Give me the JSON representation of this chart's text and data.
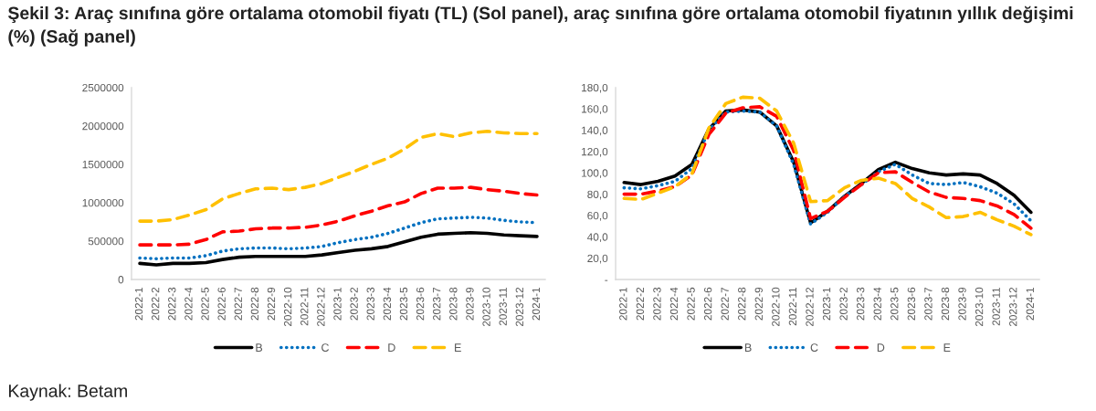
{
  "chart_data": [
    {
      "type": "line",
      "title": "Şekil 3: Araç sınıfına göre ortalama otomobil fiyatı (TL) (Sol panel), araç sınıfına göre ortalama otomobil fiyatının yıllık değişimi (%) (Sağ panel)",
      "annotations": [
        "Kaynak: Betam"
      ],
      "categories": [
        "2022-1",
        "2022-2",
        "2022-3",
        "2022-4",
        "2022-5",
        "2022-6",
        "2022-7",
        "2022-8",
        "2022-9",
        "2022-10",
        "2022-11",
        "2022-12",
        "2023-1",
        "2023-2",
        "2023-3",
        "2023-4",
        "2023-5",
        "2023-6",
        "2023-7",
        "2023-8",
        "2023-9",
        "2023-10",
        "2023-11",
        "2023-12",
        "2024-1"
      ],
      "series": [
        {
          "name": "B",
          "color": "#000000",
          "line_style": "solid",
          "values": [
            210000,
            190000,
            210000,
            210000,
            220000,
            260000,
            290000,
            300000,
            300000,
            300000,
            300000,
            320000,
            350000,
            380000,
            400000,
            430000,
            490000,
            550000,
            590000,
            600000,
            610000,
            600000,
            580000,
            570000,
            560000
          ]
        },
        {
          "name": "C",
          "color": "#0070c0",
          "line_style": "dotted",
          "values": [
            280000,
            270000,
            280000,
            280000,
            310000,
            370000,
            400000,
            410000,
            410000,
            400000,
            410000,
            430000,
            480000,
            520000,
            550000,
            600000,
            670000,
            740000,
            790000,
            800000,
            810000,
            800000,
            770000,
            750000,
            740000
          ]
        },
        {
          "name": "D",
          "color": "#ff0000",
          "line_style": "dashed",
          "values": [
            450000,
            450000,
            450000,
            460000,
            520000,
            620000,
            630000,
            660000,
            670000,
            670000,
            680000,
            710000,
            760000,
            830000,
            890000,
            960000,
            1010000,
            1120000,
            1190000,
            1190000,
            1200000,
            1170000,
            1150000,
            1120000,
            1100000
          ]
        },
        {
          "name": "E",
          "color": "#ffc000",
          "line_style": "dashed",
          "values": [
            760000,
            760000,
            780000,
            840000,
            910000,
            1050000,
            1120000,
            1180000,
            1190000,
            1170000,
            1200000,
            1250000,
            1330000,
            1410000,
            1500000,
            1580000,
            1700000,
            1850000,
            1900000,
            1860000,
            1910000,
            1930000,
            1910000,
            1900000,
            1900000
          ]
        }
      ],
      "ylim": [
        0,
        2500000
      ],
      "yticks": [
        0,
        500000,
        1000000,
        1500000,
        2000000,
        2500000
      ],
      "grid": false,
      "legend": "bottom"
    },
    {
      "type": "line",
      "categories": [
        "2022-1",
        "2022-2",
        "2022-3",
        "2022-4",
        "2022-5",
        "2022-6",
        "2022-7",
        "2022-8",
        "2022-9",
        "2022-10",
        "2022-11",
        "2022-12",
        "2023-1",
        "2023-2",
        "2023-3",
        "2023-4",
        "2023-5",
        "2023-6",
        "2023-7",
        "2023-8",
        "2023-9",
        "2023-10",
        "2023-11",
        "2023-12",
        "2024-1"
      ],
      "series": [
        {
          "name": "B",
          "color": "#000000",
          "line_style": "solid",
          "values": [
            91,
            89,
            92,
            97,
            108,
            141,
            158,
            159,
            157,
            144,
            110,
            53,
            64,
            78,
            90,
            103,
            110,
            104,
            100,
            98,
            99,
            98,
            90,
            79,
            63
          ]
        },
        {
          "name": "C",
          "color": "#0070c0",
          "line_style": "dotted",
          "values": [
            86,
            85,
            88,
            92,
            104,
            140,
            157,
            158,
            157,
            144,
            108,
            52,
            63,
            78,
            89,
            101,
            108,
            98,
            90,
            89,
            91,
            87,
            81,
            71,
            55
          ]
        },
        {
          "name": "D",
          "color": "#ff0000",
          "line_style": "dashed",
          "values": [
            80,
            80,
            83,
            87,
            98,
            136,
            156,
            161,
            162,
            153,
            121,
            57,
            64,
            77,
            89,
            100,
            101,
            91,
            82,
            77,
            76,
            74,
            69,
            61,
            48
          ]
        },
        {
          "name": "E",
          "color": "#ffc000",
          "line_style": "dashed",
          "values": [
            76,
            75,
            81,
            87,
            99,
            142,
            165,
            171,
            170,
            158,
            128,
            73,
            74,
            86,
            93,
            95,
            90,
            76,
            68,
            58,
            59,
            63,
            56,
            50,
            42
          ]
        }
      ],
      "ylim": [
        0,
        180
      ],
      "yticks": [
        {
          "value": 0,
          "label": "-"
        },
        {
          "value": 20,
          "label": "20,0"
        },
        {
          "value": 40,
          "label": "40,0"
        },
        {
          "value": 60,
          "label": "60,0"
        },
        {
          "value": 80,
          "label": "80,0"
        },
        {
          "value": 100,
          "label": "100,0"
        },
        {
          "value": 120,
          "label": "120,0"
        },
        {
          "value": 140,
          "label": "140,0"
        },
        {
          "value": 160,
          "label": "160,0"
        },
        {
          "value": 180,
          "label": "180,0"
        }
      ],
      "grid": false,
      "legend": "bottom"
    }
  ]
}
